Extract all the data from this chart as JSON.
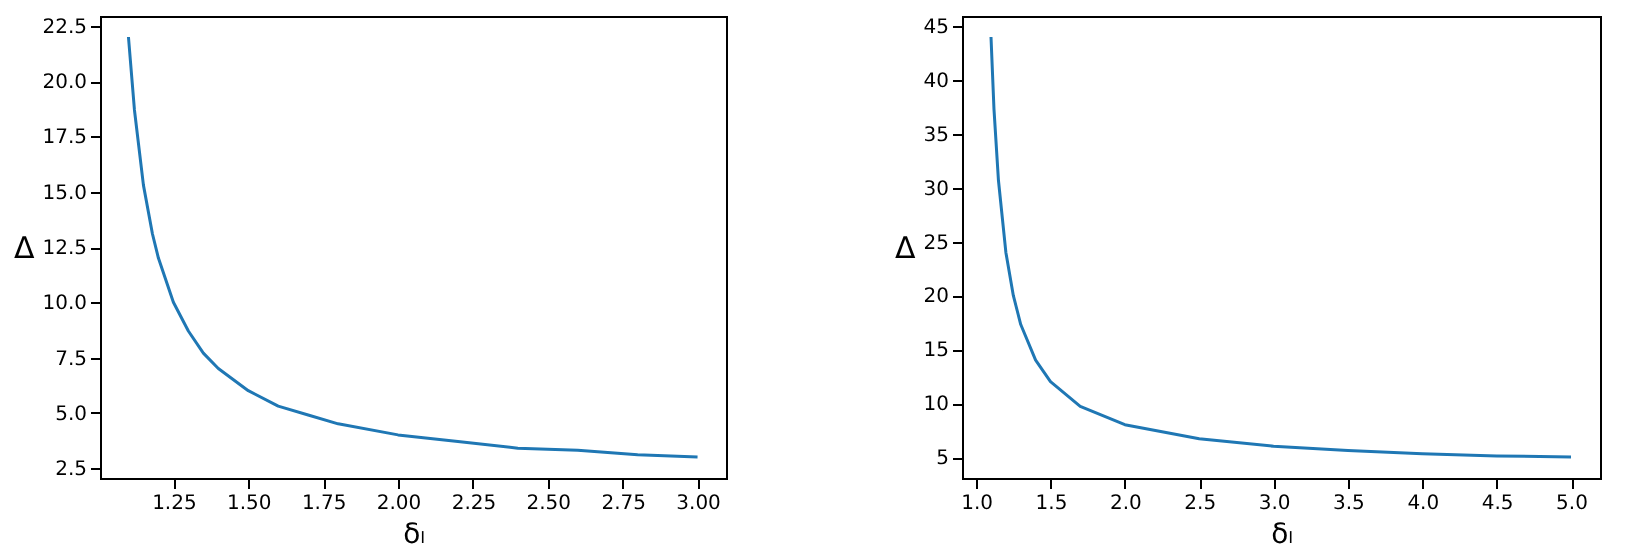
{
  "chart_data": [
    {
      "type": "line",
      "xlabel": "δₗ",
      "ylabel": "Δ",
      "xlim": [
        1.005,
        3.095
      ],
      "ylim": [
        2.05,
        22.95
      ],
      "xticks": [
        1.25,
        {
          "value": 1.5,
          "label": "1.50"
        },
        1.75,
        {
          "value": 2,
          "label": "2.00"
        },
        2.25,
        {
          "value": 2.5,
          "label": "2.50"
        },
        2.75,
        {
          "value": 3,
          "label": "3.00"
        }
      ],
      "yticks": [
        2.5,
        {
          "value": 5,
          "label": "5.0"
        },
        7.5,
        {
          "value": 10,
          "label": "10.0"
        },
        12.5,
        {
          "value": 15,
          "label": "15.0"
        },
        17.5,
        {
          "value": 20,
          "label": "20.0"
        },
        22.5
      ],
      "series": [
        {
          "color": "#1f77b4",
          "x": [
            1.1,
            1.12,
            1.15,
            1.18,
            1.2,
            1.25,
            1.3,
            1.35,
            1.4,
            1.5,
            1.6,
            1.7,
            1.8,
            2.0,
            2.2,
            2.4,
            2.6,
            2.8,
            3.0
          ],
          "values": [
            22,
            18.7,
            15.3,
            13.1,
            12,
            10,
            8.7,
            7.7,
            7,
            6,
            5.3,
            4.9,
            4.5,
            4,
            3.7,
            3.4,
            3.3,
            3.1,
            3
          ]
        }
      ]
    },
    {
      "type": "line",
      "xlabel": "δₗ",
      "ylabel": "Δ",
      "xlim": [
        0.905,
        5.195
      ],
      "ylim": [
        3.05,
        45.95
      ],
      "xticks": [
        {
          "value": 1,
          "label": "1.0"
        },
        1.5,
        {
          "value": 2,
          "label": "2.0"
        },
        2.5,
        {
          "value": 3,
          "label": "3.0"
        },
        3.5,
        {
          "value": 4,
          "label": "4.0"
        },
        4.5,
        {
          "value": 5,
          "label": "5.0"
        }
      ],
      "yticks": [
        5,
        10,
        15,
        20,
        25,
        30,
        35,
        40,
        45
      ],
      "series": [
        {
          "color": "#1f77b4",
          "x": [
            1.1,
            1.12,
            1.15,
            1.2,
            1.25,
            1.3,
            1.4,
            1.5,
            1.7,
            2,
            2.5,
            3,
            3.5,
            4,
            4.5,
            5
          ],
          "values": [
            44,
            37.3,
            30.7,
            24,
            20,
            17.3,
            14,
            12,
            9.7,
            8,
            6.7,
            6,
            5.6,
            5.3,
            5.1,
            5
          ]
        }
      ]
    }
  ]
}
